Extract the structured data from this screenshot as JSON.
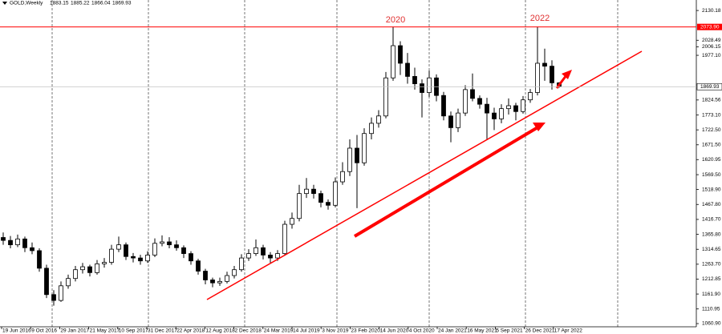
{
  "chart_data": {
    "type": "candlestick",
    "title": "GOLD,Weekly",
    "candles": [
      [
        1355,
        1372,
        1330,
        1345
      ],
      [
        1345,
        1360,
        1318,
        1330
      ],
      [
        1330,
        1365,
        1322,
        1350
      ],
      [
        1350,
        1358,
        1305,
        1320
      ],
      [
        1320,
        1338,
        1298,
        1310
      ],
      [
        1310,
        1318,
        1238,
        1250
      ],
      [
        1250,
        1262,
        1148,
        1160
      ],
      [
        1160,
        1175,
        1122,
        1140
      ],
      [
        1140,
        1205,
        1135,
        1190
      ],
      [
        1190,
        1228,
        1180,
        1215
      ],
      [
        1215,
        1258,
        1205,
        1245
      ],
      [
        1245,
        1268,
        1232,
        1255
      ],
      [
        1255,
        1262,
        1222,
        1235
      ],
      [
        1235,
        1278,
        1228,
        1265
      ],
      [
        1265,
        1285,
        1252,
        1270
      ],
      [
        1270,
        1330,
        1262,
        1315
      ],
      [
        1315,
        1358,
        1305,
        1330
      ],
      [
        1330,
        1338,
        1278,
        1290
      ],
      [
        1290,
        1302,
        1270,
        1285
      ],
      [
        1285,
        1296,
        1262,
        1275
      ],
      [
        1275,
        1308,
        1268,
        1295
      ],
      [
        1295,
        1352,
        1288,
        1335
      ],
      [
        1335,
        1362,
        1325,
        1340
      ],
      [
        1340,
        1356,
        1318,
        1330
      ],
      [
        1330,
        1345,
        1310,
        1320
      ],
      [
        1320,
        1328,
        1285,
        1300
      ],
      [
        1300,
        1308,
        1262,
        1275
      ],
      [
        1275,
        1282,
        1228,
        1240
      ],
      [
        1240,
        1248,
        1195,
        1210
      ],
      [
        1210,
        1218,
        1185,
        1200
      ],
      [
        1200,
        1218,
        1190,
        1205
      ],
      [
        1205,
        1238,
        1198,
        1225
      ],
      [
        1225,
        1258,
        1215,
        1245
      ],
      [
        1245,
        1298,
        1238,
        1285
      ],
      [
        1285,
        1315,
        1275,
        1300
      ],
      [
        1300,
        1348,
        1292,
        1320
      ],
      [
        1320,
        1330,
        1280,
        1295
      ],
      [
        1295,
        1305,
        1268,
        1285
      ],
      [
        1285,
        1312,
        1275,
        1300
      ],
      [
        1300,
        1412,
        1295,
        1400
      ],
      [
        1400,
        1440,
        1385,
        1420
      ],
      [
        1420,
        1535,
        1410,
        1505
      ],
      [
        1505,
        1558,
        1490,
        1520
      ],
      [
        1520,
        1535,
        1488,
        1505
      ],
      [
        1505,
        1515,
        1458,
        1475
      ],
      [
        1475,
        1485,
        1450,
        1465
      ],
      [
        1465,
        1560,
        1458,
        1545
      ],
      [
        1545,
        1612,
        1535,
        1580
      ],
      [
        1580,
        1690,
        1565,
        1660
      ],
      [
        1660,
        1705,
        1455,
        1610
      ],
      [
        1610,
        1728,
        1600,
        1710
      ],
      [
        1710,
        1765,
        1690,
        1745
      ],
      [
        1745,
        1790,
        1730,
        1770
      ],
      [
        1770,
        1920,
        1762,
        1900
      ],
      [
        1900,
        2075,
        1890,
        2010
      ],
      [
        2010,
        2025,
        1910,
        1950
      ],
      [
        1950,
        1985,
        1880,
        1905
      ],
      [
        1905,
        1935,
        1860,
        1880
      ],
      [
        1880,
        1895,
        1765,
        1850
      ],
      [
        1850,
        1925,
        1835,
        1900
      ],
      [
        1900,
        1912,
        1820,
        1840
      ],
      [
        1840,
        1852,
        1755,
        1770
      ],
      [
        1770,
        1785,
        1680,
        1730
      ],
      [
        1730,
        1795,
        1715,
        1780
      ],
      [
        1780,
        1875,
        1770,
        1860
      ],
      [
        1860,
        1915,
        1820,
        1830
      ],
      [
        1830,
        1840,
        1795,
        1810
      ],
      [
        1810,
        1832,
        1690,
        1780
      ],
      [
        1780,
        1798,
        1722,
        1760
      ],
      [
        1760,
        1810,
        1745,
        1795
      ],
      [
        1795,
        1830,
        1775,
        1805
      ],
      [
        1805,
        1815,
        1755,
        1785
      ],
      [
        1785,
        1838,
        1778,
        1825
      ],
      [
        1825,
        1862,
        1815,
        1850
      ],
      [
        1850,
        2075,
        1840,
        1950
      ],
      [
        1950,
        2000,
        1890,
        1940
      ],
      [
        1940,
        1960,
        1860,
        1883.15
      ],
      [
        1883.15,
        1885.22,
        1866.04,
        1869.93
      ]
    ],
    "x_labels": [
      "19 Jun 2016",
      "9 Oct 2016",
      "29 Jan 2017",
      "21 May 2017",
      "10 Sep 2017",
      "31 Dec 2017",
      "22 Apr 2018",
      "12 Aug 2018",
      "2 Dec 2018",
      "24 Mar 2019",
      "14 Jul 2019",
      "3 Nov 2019",
      "23 Feb 2020",
      "14 Jun 2020",
      "4 Oct 2020",
      "24 Jan 2021",
      "16 May 2021",
      "5 Sep 2021",
      "26 Dec 2021",
      "17 Apr 2022"
    ],
    "ylim": [
      1050,
      2166
    ],
    "yticks": [
      2130.18,
      2028.49,
      {
        "value": 1977.1,
        "label": "1977.10"
      },
      2006.15,
      1824.56,
      {
        "value": 1773.1,
        "label": "1773.10"
      },
      {
        "value": 1722.5,
        "label": "1722.50"
      },
      {
        "value": 1671.5,
        "label": "1671.50"
      },
      1620.95,
      {
        "value": 1569.5,
        "label": "1569.50"
      },
      {
        "value": 1518.9,
        "label": "1518.90"
      },
      {
        "value": 1467.8,
        "label": "1467.80"
      },
      {
        "value": 1416.7,
        "label": "1416.70"
      },
      {
        "value": 1365.8,
        "label": "1365.80"
      },
      1314.65,
      {
        "value": 1263.7,
        "label": "1263.70"
      },
      1212.85,
      {
        "value": 1161.9,
        "label": "1161.90"
      },
      1110.95,
      {
        "value": 1060.9,
        "label": "1060.90"
      }
    ],
    "level": {
      "value": 2073.9,
      "label": "2073.90",
      "color": "#ff0000"
    },
    "annotations": [
      "2020",
      "2022"
    ]
  }
}
